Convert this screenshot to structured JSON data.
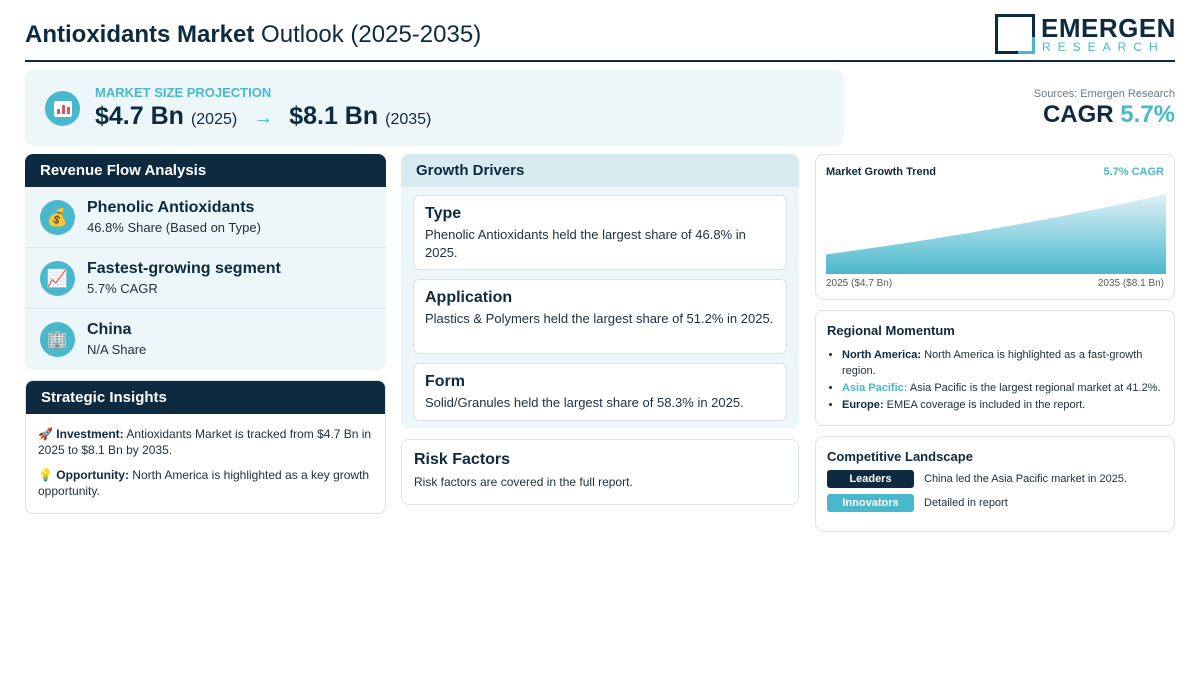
{
  "header": {
    "title_bold": "Antioxidants Market",
    "title_rest": "Outlook (2025-2035)",
    "logo_name": "EMERGEN",
    "logo_sub": "RESEARCH"
  },
  "projection": {
    "label": "MARKET SIZE PROJECTION",
    "icon": "bar-chart-icon",
    "start_value": "$4.7 Bn",
    "start_year": "(2025)",
    "arrow": "→",
    "end_value": "$8.1 Bn",
    "end_year": "(2035)"
  },
  "sources": "Sources: Emergen Research",
  "cagr": {
    "label": "CAGR",
    "value": "5.7%"
  },
  "revenue": {
    "title": "Revenue Flow Analysis",
    "items": [
      {
        "icon": "money-bag-icon",
        "glyph": "💰",
        "title": "Phenolic Antioxidants",
        "sub": "46.8% Share (Based on Type)"
      },
      {
        "icon": "trending-chart-icon",
        "glyph": "📈",
        "title": "Fastest-growing segment",
        "sub": "5.7% CAGR"
      },
      {
        "icon": "building-icon",
        "glyph": "🏢",
        "title": "China",
        "sub": "N/A Share"
      }
    ]
  },
  "insights": {
    "title": "Strategic Insights",
    "items": [
      {
        "icon": "rocket-icon",
        "glyph": "🚀",
        "label": "Investment:",
        "text": "Antioxidants Market is tracked from $4.7 Bn in 2025 to $8.1 Bn by 2035."
      },
      {
        "icon": "lightbulb-icon",
        "glyph": "💡",
        "label": "Opportunity:",
        "text": "North America is highlighted as a key growth opportunity."
      }
    ]
  },
  "drivers": {
    "title": "Growth Drivers",
    "items": [
      {
        "title": "Type",
        "text": "Phenolic Antioxidants held the largest share of 46.8% in 2025."
      },
      {
        "title": "Application",
        "text": "Plastics & Polymers held the largest share of 51.2% in 2025."
      },
      {
        "title": "Form",
        "text": "Solid/Granules held the largest share of 58.3% in 2025."
      }
    ]
  },
  "risk": {
    "title": "Risk Factors",
    "text": "Risk factors are covered in the full report."
  },
  "trend": {
    "title": "Market Growth Trend",
    "cagr_label": "5.7% CAGR",
    "start_label": "2025 ($4.7 Bn)",
    "end_label": "2035 ($8.1 Bn)",
    "colors": {
      "fill_light": "#dff1f6",
      "fill_dark": "#4ab8cc"
    }
  },
  "chart_data": {
    "type": "area",
    "x": [
      2025,
      2035
    ],
    "values": [
      4.7,
      8.1
    ],
    "title": "Market Growth Trend",
    "xlabel": "",
    "ylabel": "",
    "grid": false
  },
  "regional": {
    "title": "Regional Momentum",
    "items": [
      {
        "label": "North America:",
        "text": "North America is highlighted as a fast-growth region.",
        "accent": false
      },
      {
        "label": "Asia Pacific:",
        "text": "Asia Pacific is the largest regional market at 41.2%.",
        "accent": true
      },
      {
        "label": "Europe:",
        "text": "EMEA coverage is included in the report.",
        "accent": false
      }
    ]
  },
  "competitive": {
    "title": "Competitive Landscape",
    "rows": [
      {
        "tag": "Leaders",
        "text": "China led the Asia Pacific market in 2025."
      },
      {
        "tag": "Innovators",
        "text": "Detailed in report"
      }
    ]
  },
  "colors": {
    "navy": "#0d2a40",
    "teal": "#4ab8cc",
    "panel": "#edf6f9"
  }
}
